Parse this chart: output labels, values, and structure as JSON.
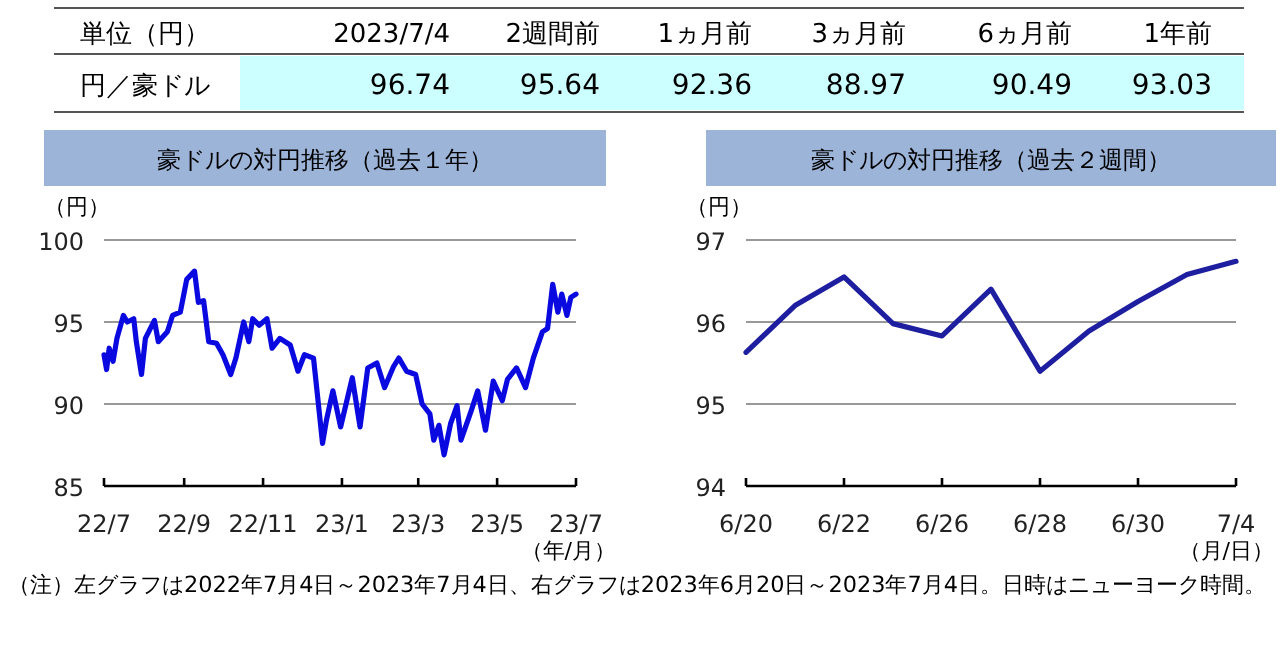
{
  "chart_data": [
    {
      "type": "other",
      "xlabel": "単位（円）",
      "ylabel": "円／豪ドル",
      "categories": [
        "2023/7/4",
        "2週間前",
        "1ヵ月前",
        "3ヵ月前",
        "6ヵ月前",
        "1年前"
      ],
      "values": [
        96.74,
        95.64,
        92.36,
        88.97,
        90.49,
        93.03
      ],
      "data_labels": true
    },
    {
      "type": "line",
      "title": "豪ドルの対円推移（過去１年）",
      "ylabel": "（円）",
      "xlabel": "（年/月）",
      "xlim": [
        "2022-07-04",
        "2023-07-04"
      ],
      "ylim": [
        85,
        100
      ],
      "yticks": [
        85,
        90,
        95,
        100
      ],
      "grid": "y",
      "xticks": [
        {
          "value": "2022-07-04",
          "label": "22/7"
        },
        {
          "value": "2022-09-04",
          "label": "22/9"
        },
        {
          "value": "2022-11-04",
          "label": "22/11"
        },
        {
          "value": "2023-01-04",
          "label": "23/1"
        },
        {
          "value": "2023-03-04",
          "label": "23/3"
        },
        {
          "value": "2023-05-04",
          "label": "23/5"
        },
        {
          "value": "2023-07-04",
          "label": "23/7"
        }
      ],
      "x": [
        "2022-07-04",
        "2022-07-06",
        "2022-07-08",
        "2022-07-11",
        "2022-07-14",
        "2022-07-19",
        "2022-07-22",
        "2022-07-27",
        "2022-07-29",
        "2022-08-02",
        "2022-08-05",
        "2022-08-12",
        "2022-08-15",
        "2022-08-22",
        "2022-08-26",
        "2022-09-01",
        "2022-09-06",
        "2022-09-12",
        "2022-09-15",
        "2022-09-19",
        "2022-09-23",
        "2022-09-29",
        "2022-10-04",
        "2022-10-10",
        "2022-10-14",
        "2022-10-20",
        "2022-10-24",
        "2022-10-27",
        "2022-11-01",
        "2022-11-07",
        "2022-11-11",
        "2022-11-17",
        "2022-11-25",
        "2022-12-01",
        "2022-12-06",
        "2022-12-13",
        "2022-12-16",
        "2022-12-20",
        "2022-12-23",
        "2022-12-28",
        "2023-01-03",
        "2023-01-09",
        "2023-01-12",
        "2023-01-18",
        "2023-01-24",
        "2023-01-31",
        "2023-02-06",
        "2023-02-13",
        "2023-02-17",
        "2023-02-23",
        "2023-03-02",
        "2023-03-07",
        "2023-03-13",
        "2023-03-16",
        "2023-03-20",
        "2023-03-24",
        "2023-03-29",
        "2023-04-03",
        "2023-04-06",
        "2023-04-14",
        "2023-04-19",
        "2023-04-25",
        "2023-05-01",
        "2023-05-08",
        "2023-05-12",
        "2023-05-19",
        "2023-05-26",
        "2023-06-01",
        "2023-06-08",
        "2023-06-12",
        "2023-06-16",
        "2023-06-20",
        "2023-06-23",
        "2023-06-27",
        "2023-06-30",
        "2023-07-04"
      ],
      "series": [
        {
          "color": "#0a0ae0",
          "values": [
            93.0,
            92.1,
            93.4,
            92.6,
            94.0,
            95.4,
            95.0,
            95.2,
            93.8,
            91.8,
            94.0,
            95.1,
            93.8,
            94.4,
            95.4,
            95.6,
            97.6,
            98.1,
            96.2,
            96.3,
            93.8,
            93.7,
            93.0,
            91.8,
            92.8,
            95.0,
            93.8,
            95.2,
            94.8,
            95.2,
            93.4,
            94.0,
            93.6,
            92.0,
            93.0,
            92.8,
            90.6,
            87.6,
            89.0,
            90.8,
            88.6,
            90.6,
            91.6,
            88.6,
            92.2,
            92.5,
            91.0,
            92.3,
            92.8,
            92.0,
            91.8,
            90.0,
            89.4,
            87.8,
            88.7,
            86.9,
            88.8,
            89.9,
            87.8,
            89.6,
            90.8,
            88.4,
            91.4,
            90.2,
            91.5,
            92.2,
            91.0,
            92.8,
            94.4,
            94.6,
            97.3,
            95.6,
            96.7,
            95.4,
            96.5,
            96.7
          ]
        }
      ]
    },
    {
      "type": "line",
      "title": "豪ドルの対円推移（過去２週間）",
      "ylabel": "（円）",
      "xlabel": "（月/日）",
      "categories": [
        "6/20",
        null,
        "6/22",
        null,
        "6/26",
        null,
        "6/28",
        null,
        "6/30",
        null,
        "7/4"
      ],
      "ylim": [
        94,
        97
      ],
      "yticks": [
        94,
        95,
        96,
        97
      ],
      "grid": "y",
      "series": [
        {
          "color": "#1e1ea0",
          "values": [
            95.63,
            96.2,
            96.55,
            95.98,
            95.83,
            96.4,
            95.4,
            95.89,
            96.25,
            96.58,
            96.74
          ]
        }
      ],
      "annotations": [
        "（注）左グラフは2022年7月4日～2023年7月4日、右グラフは2023年6月20日～2023年7月4日。日時はニューヨーク時間。"
      ]
    }
  ]
}
